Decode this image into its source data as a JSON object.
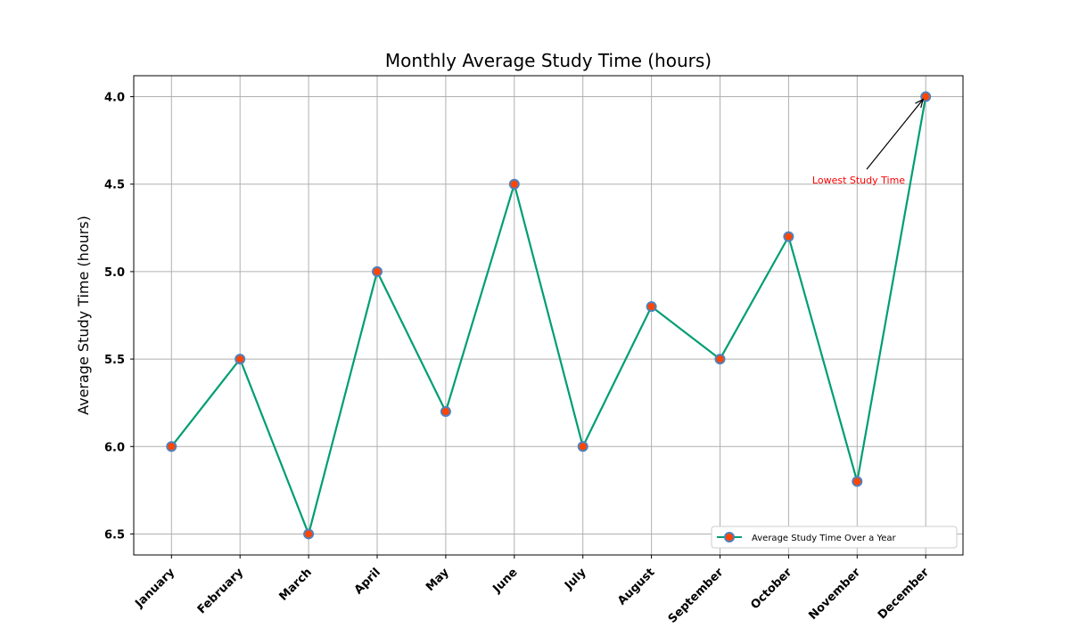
{
  "chart_data": {
    "type": "line",
    "title": "Monthly Average Study Time (hours)",
    "xlabel": "",
    "ylabel": "Average Study Time (hours)",
    "categories": [
      "January",
      "February",
      "March",
      "April",
      "May",
      "June",
      "July",
      "August",
      "September",
      "October",
      "November",
      "December"
    ],
    "series": [
      {
        "name": "Average Study Time Over a Year",
        "values": [
          6.0,
          5.5,
          6.5,
          5.0,
          5.8,
          4.5,
          6.0,
          5.2,
          5.5,
          4.8,
          6.2,
          4.0
        ],
        "line_color": "#009e73",
        "marker_face_color": "#ff4500",
        "marker_edge_color": "#4f81bd"
      }
    ],
    "y_inverted": true,
    "ylim": [
      6.62,
      3.88
    ],
    "yticks": [
      "4.0",
      "4.5",
      "5.0",
      "5.5",
      "6.0",
      "6.5"
    ],
    "grid": true,
    "legend_position": "lower right",
    "annotation": {
      "text": "Lowest Study Time",
      "category": "December",
      "value": 4.0,
      "color": "#ff0000"
    }
  }
}
